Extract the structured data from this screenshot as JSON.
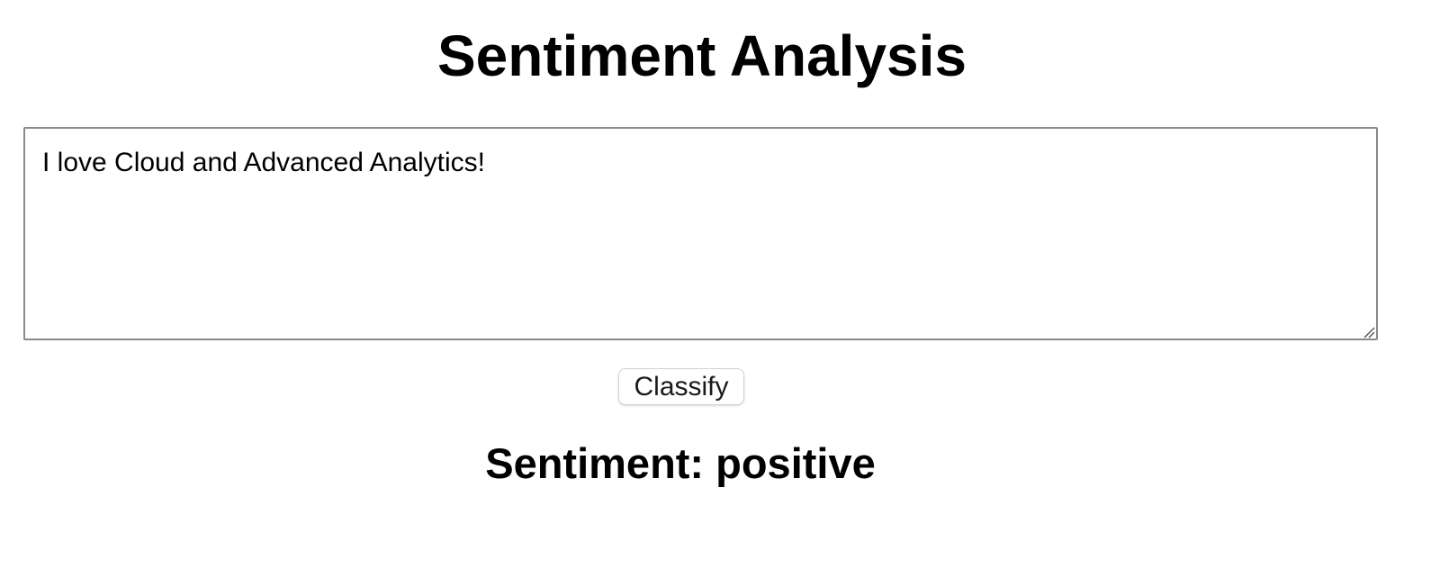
{
  "page": {
    "title": "Sentiment Analysis"
  },
  "input": {
    "value": "I love Cloud and Advanced Analytics!"
  },
  "actions": {
    "classify_label": "Classify"
  },
  "result": {
    "label": "Sentiment: positive",
    "value": "positive"
  },
  "colors": {
    "text": "#000000",
    "border": "#8a8a8a",
    "background": "#ffffff"
  }
}
